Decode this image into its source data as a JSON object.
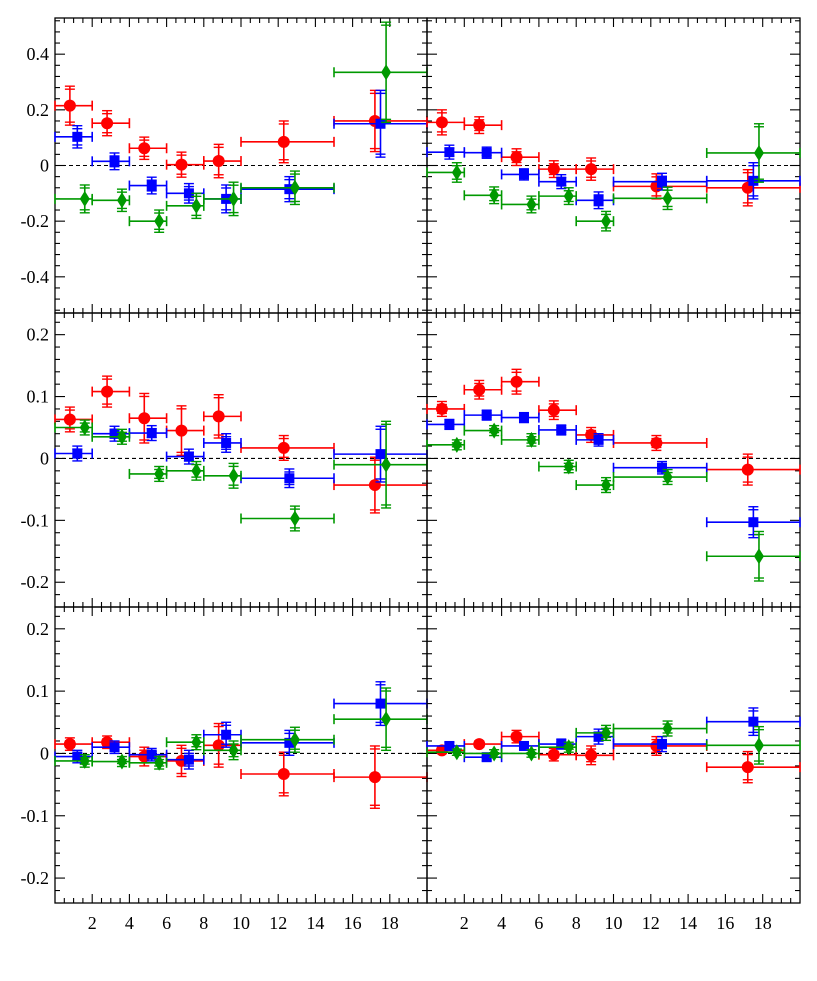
{
  "chart_data": {
    "type": "scatter",
    "layout": "3 rows x 2 columns grid of panels sharing x axis per column",
    "x_range": [
      0,
      20
    ],
    "x_tick_labels": [
      "2",
      "4",
      "6",
      "8",
      "10",
      "12",
      "14",
      "16",
      "18"
    ],
    "x_bins": [
      [
        0,
        2
      ],
      [
        2,
        4
      ],
      [
        4,
        6
      ],
      [
        6,
        8
      ],
      [
        8,
        10
      ],
      [
        10,
        15
      ],
      [
        15,
        20
      ]
    ],
    "series_colors": {
      "red": "#ff0000",
      "blue": "#0000ff",
      "green": "#009900"
    },
    "series_markers": {
      "red": "circle",
      "blue": "square",
      "green": "diamond"
    },
    "rows": [
      {
        "ylim": [
          -0.53,
          0.53
        ],
        "y_tick_labels": [
          "0.4",
          "0.2",
          "0",
          "-0.2",
          "-0.4"
        ],
        "y_tick_values": [
          0.4,
          0.2,
          0,
          -0.2,
          -0.4
        ],
        "panels": [
          {
            "name": "top-left",
            "series": [
              {
                "name": "red",
                "points": [
                  [
                    0.8,
                    0.215,
                    0.07
                  ],
                  [
                    2.8,
                    0.152,
                    0.045
                  ],
                  [
                    4.8,
                    0.062,
                    0.04
                  ],
                  [
                    6.8,
                    0.003,
                    0.045
                  ],
                  [
                    8.8,
                    0.016,
                    0.06
                  ],
                  [
                    12.3,
                    0.085,
                    0.075
                  ],
                  [
                    17.2,
                    0.16,
                    0.11
                  ]
                ]
              },
              {
                "name": "blue",
                "points": [
                  [
                    1.2,
                    0.103,
                    0.04
                  ],
                  [
                    3.2,
                    0.015,
                    0.03
                  ],
                  [
                    5.2,
                    -0.072,
                    0.03
                  ],
                  [
                    7.2,
                    -0.1,
                    0.035
                  ],
                  [
                    9.2,
                    -0.12,
                    0.05
                  ],
                  [
                    12.6,
                    -0.085,
                    0.045
                  ],
                  [
                    17.5,
                    0.15,
                    0.12
                  ]
                ]
              },
              {
                "name": "green",
                "points": [
                  [
                    1.6,
                    -0.12,
                    0.05
                  ],
                  [
                    3.6,
                    -0.125,
                    0.04
                  ],
                  [
                    5.6,
                    -0.2,
                    0.04
                  ],
                  [
                    7.6,
                    -0.145,
                    0.045
                  ],
                  [
                    9.6,
                    -0.12,
                    0.06
                  ],
                  [
                    12.9,
                    -0.08,
                    0.06
                  ],
                  [
                    17.8,
                    0.335,
                    0.18
                  ]
                ]
              }
            ]
          },
          {
            "name": "top-right",
            "series": [
              {
                "name": "red",
                "points": [
                  [
                    0.8,
                    0.155,
                    0.045
                  ],
                  [
                    2.8,
                    0.145,
                    0.03
                  ],
                  [
                    4.8,
                    0.03,
                    0.03
                  ],
                  [
                    6.8,
                    -0.013,
                    0.03
                  ],
                  [
                    8.8,
                    -0.013,
                    0.04
                  ],
                  [
                    12.3,
                    -0.075,
                    0.045
                  ],
                  [
                    17.2,
                    -0.08,
                    0.065
                  ]
                ]
              },
              {
                "name": "blue",
                "points": [
                  [
                    1.2,
                    0.048,
                    0.025
                  ],
                  [
                    3.2,
                    0.046,
                    0.02
                  ],
                  [
                    5.2,
                    -0.032,
                    0.02
                  ],
                  [
                    7.2,
                    -0.058,
                    0.025
                  ],
                  [
                    9.2,
                    -0.125,
                    0.03
                  ],
                  [
                    12.6,
                    -0.058,
                    0.03
                  ],
                  [
                    17.5,
                    -0.055,
                    0.065
                  ]
                ]
              },
              {
                "name": "green",
                "points": [
                  [
                    1.6,
                    -0.025,
                    0.035
                  ],
                  [
                    3.6,
                    -0.107,
                    0.03
                  ],
                  [
                    5.6,
                    -0.14,
                    0.03
                  ],
                  [
                    7.6,
                    -0.11,
                    0.03
                  ],
                  [
                    9.6,
                    -0.2,
                    0.035
                  ],
                  [
                    12.9,
                    -0.118,
                    0.04
                  ],
                  [
                    17.8,
                    0.045,
                    0.105
                  ]
                ]
              }
            ]
          }
        ]
      },
      {
        "ylim": [
          -0.24,
          0.235
        ],
        "y_tick_labels": [
          "0.2",
          "0.1",
          "0",
          "-0.1",
          "-0.2"
        ],
        "y_tick_values": [
          0.2,
          0.1,
          0,
          -0.1,
          -0.2
        ],
        "panels": [
          {
            "name": "middle-left",
            "series": [
              {
                "name": "red",
                "points": [
                  [
                    0.8,
                    0.063,
                    0.02
                  ],
                  [
                    2.8,
                    0.108,
                    0.025
                  ],
                  [
                    4.8,
                    0.065,
                    0.04
                  ],
                  [
                    6.8,
                    0.045,
                    0.04
                  ],
                  [
                    8.8,
                    0.068,
                    0.035
                  ],
                  [
                    12.3,
                    0.017,
                    0.02
                  ],
                  [
                    17.2,
                    -0.043,
                    0.045
                  ]
                ]
              },
              {
                "name": "blue",
                "points": [
                  [
                    1.2,
                    0.008,
                    0.012
                  ],
                  [
                    3.2,
                    0.04,
                    0.012
                  ],
                  [
                    5.2,
                    0.041,
                    0.012
                  ],
                  [
                    7.2,
                    0.003,
                    0.012
                  ],
                  [
                    9.2,
                    0.025,
                    0.015
                  ],
                  [
                    12.6,
                    -0.032,
                    0.015
                  ],
                  [
                    17.5,
                    0.007,
                    0.045
                  ]
                ]
              },
              {
                "name": "green",
                "points": [
                  [
                    1.6,
                    0.05,
                    0.012
                  ],
                  [
                    3.6,
                    0.035,
                    0.012
                  ],
                  [
                    5.6,
                    -0.025,
                    0.012
                  ],
                  [
                    7.6,
                    -0.02,
                    0.015
                  ],
                  [
                    9.6,
                    -0.028,
                    0.02
                  ],
                  [
                    12.9,
                    -0.097,
                    0.02
                  ],
                  [
                    17.8,
                    -0.01,
                    0.07
                  ]
                ]
              }
            ]
          },
          {
            "name": "middle-right",
            "series": [
              {
                "name": "red",
                "points": [
                  [
                    0.8,
                    0.08,
                    0.012
                  ],
                  [
                    2.8,
                    0.111,
                    0.015
                  ],
                  [
                    4.8,
                    0.124,
                    0.02
                  ],
                  [
                    6.8,
                    0.078,
                    0.015
                  ],
                  [
                    8.8,
                    0.038,
                    0.012
                  ],
                  [
                    12.3,
                    0.025,
                    0.012
                  ],
                  [
                    17.2,
                    -0.018,
                    0.025
                  ]
                ]
              },
              {
                "name": "blue",
                "points": [
                  [
                    1.2,
                    0.055,
                    0.008
                  ],
                  [
                    3.2,
                    0.07,
                    0.008
                  ],
                  [
                    5.2,
                    0.066,
                    0.008
                  ],
                  [
                    7.2,
                    0.046,
                    0.008
                  ],
                  [
                    9.2,
                    0.03,
                    0.01
                  ],
                  [
                    12.6,
                    -0.015,
                    0.01
                  ],
                  [
                    17.5,
                    -0.103,
                    0.025
                  ]
                ]
              },
              {
                "name": "green",
                "points": [
                  [
                    1.6,
                    0.022,
                    0.008
                  ],
                  [
                    3.6,
                    0.045,
                    0.008
                  ],
                  [
                    5.6,
                    0.03,
                    0.01
                  ],
                  [
                    7.6,
                    -0.013,
                    0.01
                  ],
                  [
                    9.6,
                    -0.043,
                    0.012
                  ],
                  [
                    12.9,
                    -0.03,
                    0.012
                  ],
                  [
                    17.8,
                    -0.158,
                    0.04
                  ]
                ]
              }
            ]
          }
        ]
      },
      {
        "ylim": [
          -0.24,
          0.235
        ],
        "y_tick_labels": [
          "0.2",
          "0.1",
          "0",
          "-0.1",
          "-0.2"
        ],
        "y_tick_values": [
          0.2,
          0.1,
          0,
          -0.1,
          -0.2
        ],
        "panels": [
          {
            "name": "bottom-left",
            "series": [
              {
                "name": "red",
                "points": [
                  [
                    0.8,
                    0.015,
                    0.01
                  ],
                  [
                    2.8,
                    0.018,
                    0.01
                  ],
                  [
                    4.8,
                    -0.005,
                    0.015
                  ],
                  [
                    6.8,
                    -0.012,
                    0.025
                  ],
                  [
                    8.8,
                    0.013,
                    0.035
                  ],
                  [
                    12.3,
                    -0.033,
                    0.035
                  ],
                  [
                    17.2,
                    -0.038,
                    0.05
                  ]
                ]
              },
              {
                "name": "blue",
                "points": [
                  [
                    1.2,
                    -0.005,
                    0.01
                  ],
                  [
                    3.2,
                    0.01,
                    0.01
                  ],
                  [
                    5.2,
                    -0.002,
                    0.01
                  ],
                  [
                    7.2,
                    -0.01,
                    0.015
                  ],
                  [
                    9.2,
                    0.03,
                    0.02
                  ],
                  [
                    12.6,
                    0.017,
                    0.02
                  ],
                  [
                    17.5,
                    0.08,
                    0.035
                  ]
                ]
              },
              {
                "name": "green",
                "points": [
                  [
                    1.6,
                    -0.012,
                    0.01
                  ],
                  [
                    3.6,
                    -0.013,
                    0.008
                  ],
                  [
                    5.6,
                    -0.015,
                    0.01
                  ],
                  [
                    7.6,
                    0.018,
                    0.012
                  ],
                  [
                    9.6,
                    0.005,
                    0.015
                  ],
                  [
                    12.9,
                    0.022,
                    0.02
                  ],
                  [
                    17.8,
                    0.055,
                    0.05
                  ]
                ]
              }
            ]
          },
          {
            "name": "bottom-right",
            "series": [
              {
                "name": "red",
                "points": [
                  [
                    0.8,
                    0.005,
                    0.005
                  ],
                  [
                    2.8,
                    0.015,
                    0.005
                  ],
                  [
                    4.8,
                    0.027,
                    0.01
                  ],
                  [
                    6.8,
                    -0.002,
                    0.01
                  ],
                  [
                    8.8,
                    -0.003,
                    0.015
                  ],
                  [
                    12.3,
                    0.012,
                    0.015
                  ],
                  [
                    17.2,
                    -0.022,
                    0.025
                  ]
                ]
              },
              {
                "name": "blue",
                "points": [
                  [
                    1.2,
                    0.012,
                    0.006
                  ],
                  [
                    3.2,
                    -0.006,
                    0.006
                  ],
                  [
                    5.2,
                    0.012,
                    0.006
                  ],
                  [
                    7.2,
                    0.015,
                    0.008
                  ],
                  [
                    9.2,
                    0.027,
                    0.012
                  ],
                  [
                    12.6,
                    0.015,
                    0.012
                  ],
                  [
                    17.5,
                    0.051,
                    0.022
                  ]
                ]
              },
              {
                "name": "green",
                "points": [
                  [
                    1.6,
                    0.002,
                    0.005
                  ],
                  [
                    3.6,
                    0.0,
                    0.006
                  ],
                  [
                    5.6,
                    0.0,
                    0.006
                  ],
                  [
                    7.6,
                    0.01,
                    0.008
                  ],
                  [
                    9.6,
                    0.033,
                    0.012
                  ],
                  [
                    12.9,
                    0.04,
                    0.012
                  ],
                  [
                    17.8,
                    0.013,
                    0.03
                  ]
                ]
              }
            ]
          }
        ]
      }
    ]
  }
}
